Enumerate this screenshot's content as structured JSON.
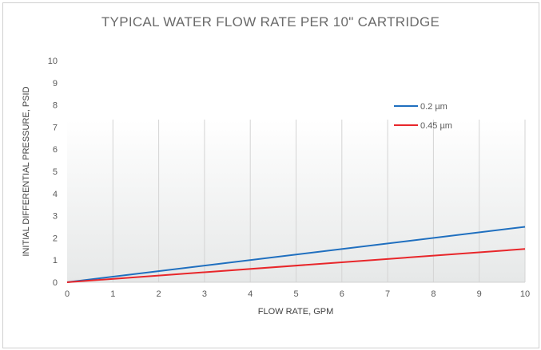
{
  "chart_data": {
    "type": "line",
    "title": "TYPICAL WATER FLOW RATE PER 10\" CARTRIDGE",
    "xlabel": "FLOW RATE, GPM",
    "ylabel": "INITIAL DIFFERENTIAL PRESSURE, PSID",
    "xlim": [
      0,
      10
    ],
    "ylim": [
      0,
      10
    ],
    "xticks": [
      "0",
      "1",
      "2",
      "3",
      "4",
      "5",
      "6",
      "7",
      "8",
      "9",
      "10"
    ],
    "yticks": [
      "0",
      "1",
      "2",
      "3",
      "4",
      "5",
      "6",
      "7",
      "8",
      "9",
      "10"
    ],
    "legend_position": "top-right",
    "grid": "vertical",
    "x": [
      0,
      10
    ],
    "series": [
      {
        "name": "0.2 µm",
        "color": "#1f6fbf",
        "values": [
          0,
          2.5
        ]
      },
      {
        "name": "0.45 µm",
        "color": "#e8262a",
        "values": [
          0,
          1.5
        ]
      }
    ]
  }
}
